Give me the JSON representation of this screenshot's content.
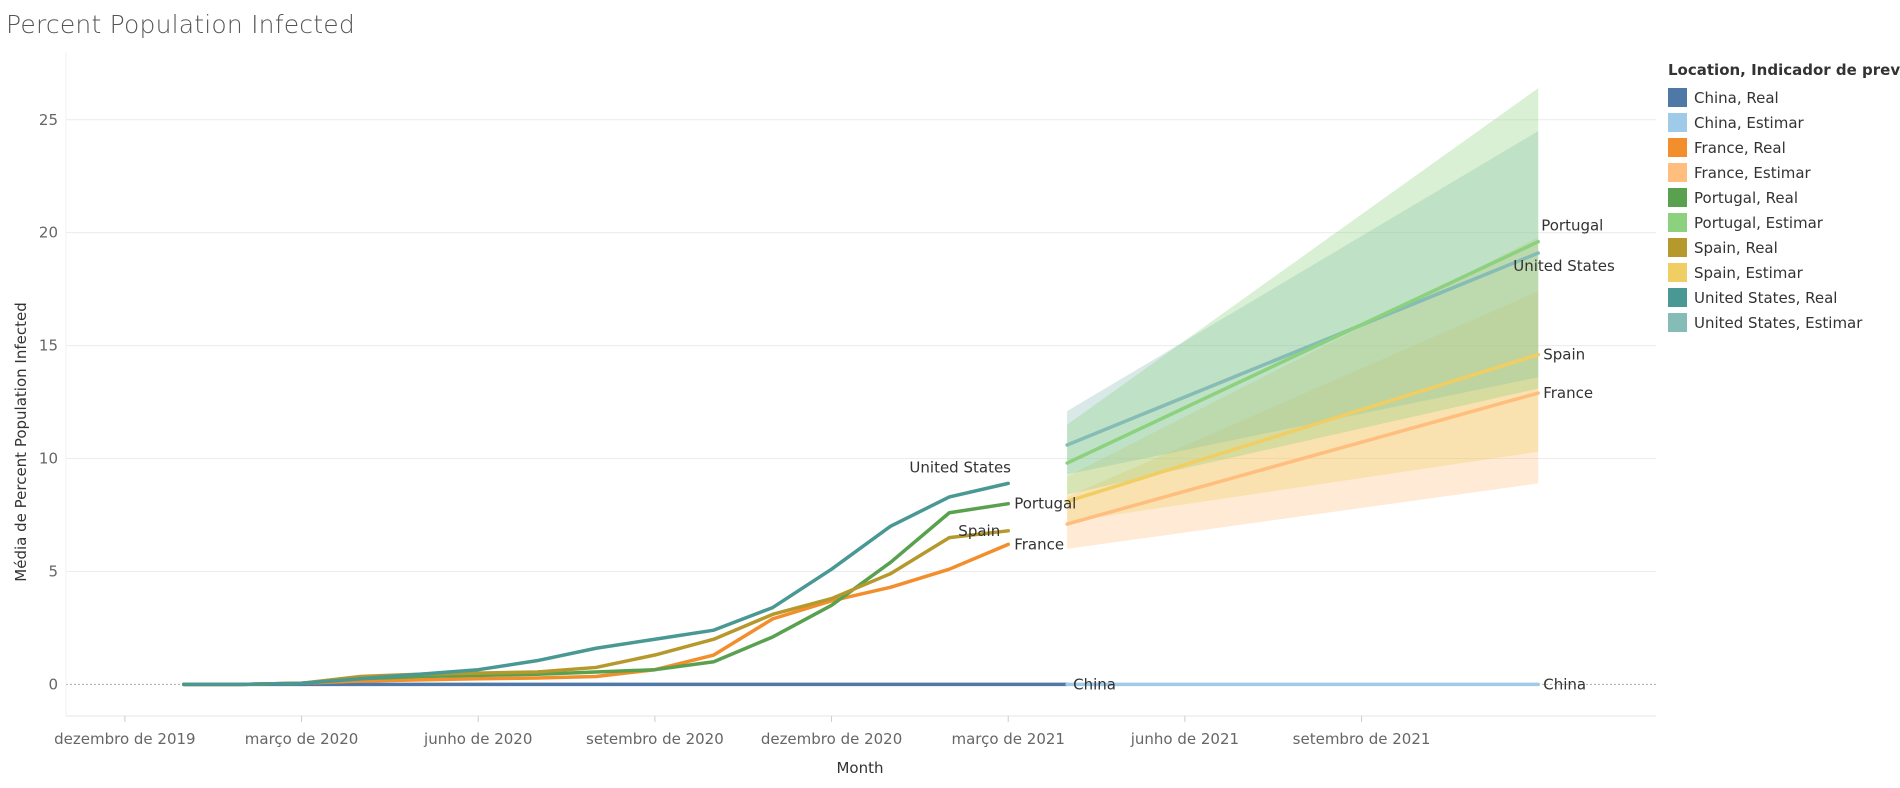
{
  "chart_data": {
    "type": "line",
    "title": "Percent Population Infected",
    "xlabel": "Month",
    "ylabel": "Média de Percent Population Infected",
    "ylim": [
      -1.4,
      28
    ],
    "yticks": [
      0,
      5,
      10,
      15,
      20,
      25
    ],
    "xticks": [
      {
        "label": "dezembro de 2019",
        "month": 0
      },
      {
        "label": "março de 2020",
        "month": 3
      },
      {
        "label": "junho de 2020",
        "month": 6
      },
      {
        "label": "setembro de 2020",
        "month": 9
      },
      {
        "label": "dezembro de 2020",
        "month": 12
      },
      {
        "label": "março de 2021",
        "month": 15
      },
      {
        "label": "junho de 2021",
        "month": 18
      },
      {
        "label": "setembro de 2021",
        "month": 21
      }
    ],
    "xlim": [
      -1,
      26
    ],
    "grid": true,
    "legend": {
      "title": "Location, Indicador de previsões",
      "placement": "right",
      "entries": [
        {
          "label": "China, Real",
          "color": "#4e79a7"
        },
        {
          "label": "China, Estimar",
          "color": "#a0cbe8"
        },
        {
          "label": "France, Real",
          "color": "#f28e2b"
        },
        {
          "label": "France, Estimar",
          "color": "#ffbe7d"
        },
        {
          "label": "Portugal, Real",
          "color": "#59a14f"
        },
        {
          "label": "Portugal, Estimar",
          "color": "#8cd17d"
        },
        {
          "label": "Spain, Real",
          "color": "#b6992d"
        },
        {
          "label": "Spain, Estimar",
          "color": "#f1ce63"
        },
        {
          "label": "United States, Real",
          "color": "#499894"
        },
        {
          "label": "United States, Estimar",
          "color": "#86bcb6"
        }
      ]
    },
    "actual": {
      "x": [
        1,
        2,
        3,
        4,
        5,
        6,
        7,
        8,
        9,
        10,
        11,
        12,
        13,
        14,
        15,
        16
      ],
      "series": [
        {
          "name": "China",
          "color": "#4e79a7",
          "label": "China",
          "values": [
            0.0,
            0.0,
            0.0,
            0.0,
            0.0,
            0.0,
            0.0,
            0.0,
            0.0,
            0.0,
            0.0,
            0.0,
            0.0,
            0.0,
            0.0,
            0.0
          ]
        },
        {
          "name": "France",
          "color": "#f28e2b",
          "label": "France",
          "values": [
            0.0,
            0.0,
            0.05,
            0.15,
            0.2,
            0.25,
            0.28,
            0.35,
            0.65,
            1.3,
            2.9,
            3.7,
            4.3,
            5.1,
            6.2,
            null
          ]
        },
        {
          "name": "Portugal",
          "color": "#59a14f",
          "label": "Portugal",
          "values": [
            0.0,
            0.0,
            0.05,
            0.25,
            0.35,
            0.4,
            0.45,
            0.55,
            0.65,
            1.0,
            2.1,
            3.5,
            5.4,
            7.6,
            8.0,
            null
          ]
        },
        {
          "name": "Spain",
          "color": "#b6992d",
          "label": "Spain",
          "values": [
            0.0,
            0.0,
            0.05,
            0.35,
            0.45,
            0.5,
            0.55,
            0.75,
            1.3,
            2.0,
            3.1,
            3.8,
            4.9,
            6.5,
            6.8,
            null
          ]
        },
        {
          "name": "United States",
          "color": "#499894",
          "label": "United States",
          "values": [
            0.0,
            0.0,
            0.05,
            0.25,
            0.45,
            0.65,
            1.05,
            1.6,
            2.0,
            2.4,
            3.4,
            5.1,
            7.0,
            8.3,
            8.9,
            null
          ]
        }
      ]
    },
    "forecast": {
      "x": [
        16,
        24
      ],
      "series": [
        {
          "name": "China",
          "color": "#a0cbe8",
          "label": "China",
          "values": [
            0.0,
            0.0
          ],
          "band": null
        },
        {
          "name": "France",
          "color": "#ffbe7d",
          "label": "France",
          "values": [
            7.1,
            12.9
          ],
          "band": {
            "lower": [
              6.0,
              8.9
            ],
            "upper": [
              8.3,
              17.4
            ],
            "color": "#ffbe7d"
          }
        },
        {
          "name": "Spain",
          "color": "#f1ce63",
          "label": "Spain",
          "values": [
            8.1,
            14.6
          ],
          "band": {
            "lower": [
              7.2,
              10.3
            ],
            "upper": [
              9.2,
              19.8
            ],
            "color": "#f1ce63"
          }
        },
        {
          "name": "United States",
          "color": "#86bcb6",
          "label": "United States",
          "values": [
            10.6,
            19.1
          ],
          "band": {
            "lower": [
              9.3,
              13.6
            ],
            "upper": [
              12.1,
              24.5
            ],
            "color": "#86bcb6"
          }
        },
        {
          "name": "Portugal",
          "color": "#8cd17d",
          "label": "Portugal",
          "values": [
            9.8,
            19.6
          ],
          "band": {
            "lower": [
              8.4,
              13.1
            ],
            "upper": [
              11.5,
              26.4
            ],
            "color": "#8cd17d"
          }
        }
      ]
    }
  }
}
